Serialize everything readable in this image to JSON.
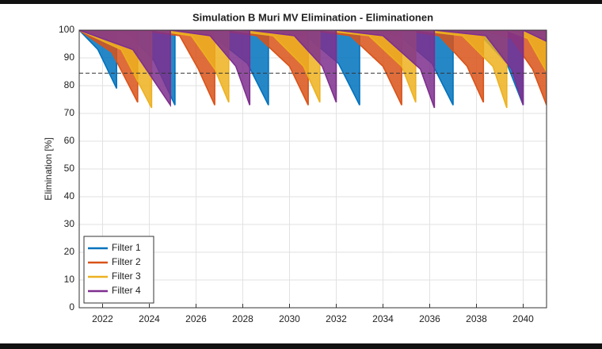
{
  "chart_data": {
    "type": "line",
    "title": "Simulation B Muri MV Elimination - Eliminationen",
    "y_label": "Elimination [%]",
    "xlim": [
      2021,
      2041
    ],
    "xticks": [
      2022,
      2024,
      2026,
      2028,
      2030,
      2032,
      2034,
      2036,
      2038,
      2040
    ],
    "ylim": [
      0,
      100
    ],
    "yticks": [
      0,
      10,
      20,
      30,
      40,
      50,
      60,
      70,
      80,
      90,
      100
    ],
    "grid": true,
    "legend": "lower left",
    "hline": 84.5,
    "series": [
      {
        "name": "Filter 1",
        "color": "#0072bd",
        "x": [
          2021,
          2021.8,
          2022.6,
          2022.6,
          2023.2,
          2024.2,
          2025.1,
          2025.1,
          2026.7,
          2028.2,
          2029.1,
          2029.1,
          2030.7,
          2032.1,
          2033.0,
          2033.0,
          2034.7,
          2036.1,
          2037.0,
          2037.0,
          2038.2,
          2039.3,
          2040.0,
          2040.0,
          2041
        ],
        "values": [
          100,
          93,
          79,
          100,
          98,
          89,
          73,
          100,
          98,
          88,
          73,
          100,
          98,
          88,
          73,
          100,
          98,
          88,
          73,
          100,
          98,
          88,
          73,
          100,
          99
        ]
      },
      {
        "name": "Filter 2",
        "color": "#d95319",
        "x": [
          2021,
          2022.4,
          2023.5,
          2023.5,
          2025.3,
          2026.1,
          2026.8,
          2026.8,
          2028.6,
          2030.0,
          2030.8,
          2030.8,
          2032.6,
          2034.0,
          2034.8,
          2034.8,
          2036.4,
          2037.6,
          2038.3,
          2038.3,
          2039.5,
          2040.4,
          2041
        ],
        "values": [
          100,
          92,
          74,
          100,
          98,
          86,
          73,
          100,
          98,
          87,
          73,
          100,
          98,
          87,
          73,
          100,
          98,
          87,
          74,
          100,
          97,
          86,
          73
        ]
      },
      {
        "name": "Filter 3",
        "color": "#edb120",
        "x": [
          2021,
          2022.8,
          2024.1,
          2024.1,
          2025.8,
          2026.8,
          2027.4,
          2027.4,
          2029.3,
          2030.6,
          2031.3,
          2031.3,
          2033.4,
          2034.8,
          2035.4,
          2035.4,
          2037.4,
          2038.7,
          2039.3,
          2039.3,
          2040.2,
          2041
        ],
        "values": [
          100,
          93,
          72,
          100,
          98,
          86,
          74,
          100,
          98,
          87,
          74,
          100,
          98,
          87,
          74,
          100,
          98,
          87,
          72,
          100,
          97,
          85
        ]
      },
      {
        "name": "Filter 4",
        "color": "#7e2f8e",
        "x": [
          2021,
          2023.3,
          2024.9,
          2024.9,
          2026.6,
          2027.7,
          2028.3,
          2028.3,
          2030.2,
          2031.4,
          2032.0,
          2032.0,
          2034.0,
          2035.6,
          2036.2,
          2036.2,
          2038.4,
          2039.5,
          2040.0,
          2040.0,
          2041
        ],
        "values": [
          100,
          93,
          73,
          100,
          98,
          87,
          73,
          100,
          98,
          87,
          74,
          100,
          98,
          86,
          72,
          100,
          98,
          86,
          73,
          100,
          96
        ]
      }
    ]
  }
}
